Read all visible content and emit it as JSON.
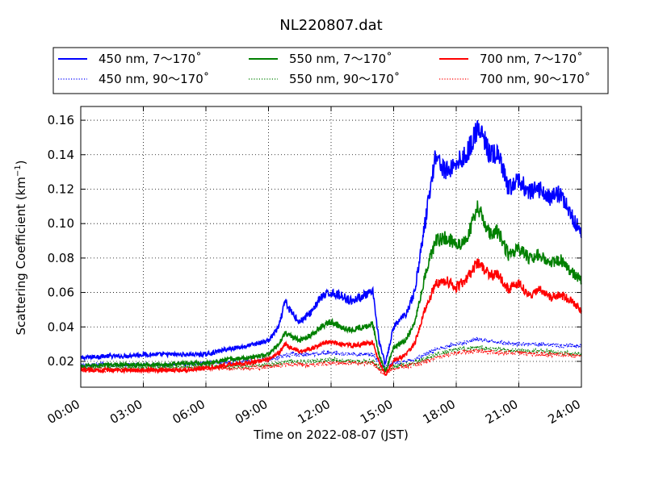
{
  "chart_data": {
    "type": "line",
    "title": "NL220807.dat",
    "xlabel": "Time on 2022-08-07 (JST)",
    "ylabel_main": "Scattering Coefficient (km",
    "ylabel_sup": "−1",
    "ylabel_close": ")",
    "x_unit": "hours",
    "xlim": [
      0,
      24
    ],
    "ylim": [
      0.005,
      0.168
    ],
    "grid": true,
    "grid_style": "dotted",
    "legend_placement": "top, above plot, 3 columns",
    "x_ticks": [
      0,
      3,
      6,
      9,
      12,
      15,
      18,
      21,
      24
    ],
    "x_tick_labels": [
      "00:00",
      "03:00",
      "06:00",
      "09:00",
      "12:00",
      "15:00",
      "18:00",
      "21:00",
      "24:00"
    ],
    "y_ticks": [
      0.02,
      0.04,
      0.06,
      0.08,
      0.1,
      0.12,
      0.14,
      0.16
    ],
    "y_tick_labels": [
      "0.02",
      "0.04",
      "0.06",
      "0.08",
      "0.10",
      "0.12",
      "0.14",
      "0.16"
    ],
    "series": [
      {
        "name": "450 nm, 7～170˚",
        "color": "#0000ff",
        "style": "solid",
        "x": [
          0,
          1,
          2,
          3,
          4,
          5,
          6,
          7,
          8,
          9,
          9.5,
          9.8,
          10,
          10.5,
          11,
          11.5,
          12,
          12.5,
          13,
          13.5,
          14,
          14.3,
          14.6,
          15,
          15.3,
          15.6,
          16,
          16.5,
          17,
          17.5,
          18,
          18.5,
          19,
          19.3,
          19.6,
          20,
          20.5,
          21,
          21.5,
          22,
          22.5,
          23,
          23.5,
          24
        ],
        "y": [
          0.022,
          0.023,
          0.023,
          0.024,
          0.024,
          0.024,
          0.024,
          0.027,
          0.029,
          0.032,
          0.04,
          0.055,
          0.05,
          0.043,
          0.048,
          0.057,
          0.06,
          0.058,
          0.055,
          0.058,
          0.06,
          0.032,
          0.018,
          0.04,
          0.044,
          0.048,
          0.06,
          0.1,
          0.14,
          0.13,
          0.135,
          0.14,
          0.155,
          0.15,
          0.14,
          0.14,
          0.12,
          0.125,
          0.118,
          0.12,
          0.115,
          0.118,
          0.105,
          0.095
        ]
      },
      {
        "name": "550 nm, 7～170˚",
        "color": "#008000",
        "style": "solid",
        "x": [
          0,
          1,
          2,
          3,
          4,
          5,
          6,
          7,
          8,
          9,
          9.5,
          9.8,
          10,
          10.5,
          11,
          11.5,
          12,
          12.5,
          13,
          13.5,
          14,
          14.3,
          14.6,
          15,
          15.3,
          15.6,
          16,
          16.5,
          17,
          17.5,
          18,
          18.5,
          19,
          19.3,
          19.6,
          20,
          20.5,
          21,
          21.5,
          22,
          22.5,
          23,
          23.5,
          24
        ],
        "y": [
          0.017,
          0.018,
          0.018,
          0.018,
          0.018,
          0.019,
          0.019,
          0.021,
          0.022,
          0.024,
          0.03,
          0.037,
          0.035,
          0.032,
          0.035,
          0.04,
          0.043,
          0.04,
          0.038,
          0.04,
          0.042,
          0.024,
          0.014,
          0.028,
          0.03,
          0.033,
          0.042,
          0.07,
          0.09,
          0.092,
          0.088,
          0.09,
          0.11,
          0.102,
          0.095,
          0.095,
          0.082,
          0.085,
          0.08,
          0.082,
          0.077,
          0.079,
          0.072,
          0.067
        ]
      },
      {
        "name": "700 nm, 7～170˚",
        "color": "#ff0000",
        "style": "solid",
        "x": [
          0,
          1,
          2,
          3,
          4,
          5,
          6,
          7,
          8,
          9,
          9.5,
          9.8,
          10,
          10.5,
          11,
          11.5,
          12,
          12.5,
          13,
          13.5,
          14,
          14.3,
          14.6,
          15,
          15.3,
          15.6,
          16,
          16.5,
          17,
          17.5,
          18,
          18.5,
          19,
          19.3,
          19.6,
          20,
          20.5,
          21,
          21.5,
          22,
          22.5,
          23,
          23.5,
          24
        ],
        "y": [
          0.015,
          0.015,
          0.015,
          0.015,
          0.015,
          0.015,
          0.016,
          0.018,
          0.019,
          0.021,
          0.025,
          0.03,
          0.028,
          0.026,
          0.027,
          0.03,
          0.031,
          0.03,
          0.029,
          0.03,
          0.031,
          0.02,
          0.012,
          0.02,
          0.022,
          0.024,
          0.03,
          0.05,
          0.065,
          0.067,
          0.063,
          0.068,
          0.077,
          0.074,
          0.07,
          0.07,
          0.062,
          0.065,
          0.058,
          0.062,
          0.057,
          0.059,
          0.055,
          0.05
        ]
      },
      {
        "name": "450 nm, 90～170˚",
        "color": "#0000ff",
        "style": "dotted",
        "x": [
          0,
          2,
          4,
          6,
          8,
          9,
          10,
          11,
          12,
          13,
          14,
          14.5,
          15,
          16,
          17,
          18,
          19,
          20,
          21,
          22,
          23,
          24
        ],
        "y": [
          0.018,
          0.018,
          0.018,
          0.019,
          0.02,
          0.021,
          0.024,
          0.024,
          0.025,
          0.024,
          0.024,
          0.017,
          0.019,
          0.021,
          0.027,
          0.03,
          0.033,
          0.031,
          0.03,
          0.03,
          0.029,
          0.029
        ]
      },
      {
        "name": "550 nm, 90～170˚",
        "color": "#008000",
        "style": "dotted",
        "x": [
          0,
          2,
          4,
          6,
          8,
          9,
          10,
          11,
          12,
          13,
          14,
          14.5,
          15,
          16,
          17,
          18,
          19,
          20,
          21,
          22,
          23,
          24
        ],
        "y": [
          0.016,
          0.016,
          0.016,
          0.017,
          0.017,
          0.018,
          0.02,
          0.02,
          0.021,
          0.02,
          0.02,
          0.014,
          0.017,
          0.019,
          0.024,
          0.027,
          0.028,
          0.027,
          0.026,
          0.026,
          0.025,
          0.024
        ]
      },
      {
        "name": "700 nm, 90～170˚",
        "color": "#ff0000",
        "style": "dotted",
        "x": [
          0,
          2,
          4,
          6,
          8,
          9,
          10,
          11,
          12,
          13,
          14,
          14.5,
          15,
          16,
          17,
          18,
          19,
          20,
          21,
          22,
          23,
          24
        ],
        "y": [
          0.015,
          0.015,
          0.015,
          0.016,
          0.016,
          0.017,
          0.018,
          0.018,
          0.019,
          0.019,
          0.019,
          0.013,
          0.016,
          0.018,
          0.022,
          0.025,
          0.026,
          0.025,
          0.025,
          0.024,
          0.024,
          0.023
        ]
      }
    ]
  }
}
